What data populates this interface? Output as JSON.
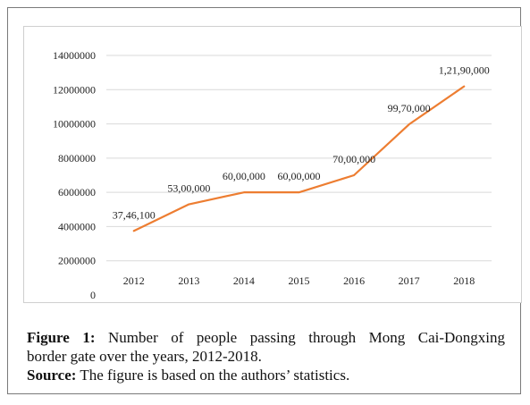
{
  "figure": {
    "label": "Figure 1:",
    "caption_line1": "Number of people passing through Mong Cai-Dongxing",
    "caption_line2": "border gate over the years, 2012-2018.",
    "source_label": "Source:",
    "source_text": "The figure is based on the authors’ statistics."
  },
  "chart_data": {
    "type": "line",
    "title": "",
    "xlabel": "",
    "ylabel": "",
    "categories": [
      "2012",
      "2013",
      "2014",
      "2015",
      "2016",
      "2017",
      "2018"
    ],
    "series": [
      {
        "values": [
          3746100,
          5300000,
          6000000,
          6000000,
          7000000,
          9970000,
          12190000
        ],
        "data_labels": [
          "37,46,100",
          "53,00,000",
          "60,00,000",
          "60,00,000",
          "70,00,000",
          "99,70,000",
          "1,21,90,000"
        ],
        "color": "#ED7D31"
      }
    ],
    "ylim": [
      0,
      14000000
    ],
    "yticks": [
      "0",
      "2000000",
      "4000000",
      "6000000",
      "8000000",
      "10000000",
      "12000000",
      "14000000"
    ],
    "grid": true,
    "legend": "none",
    "gridline_color": "#d9d9d9"
  }
}
